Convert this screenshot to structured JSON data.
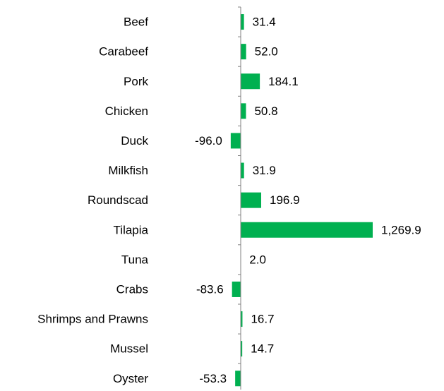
{
  "chart_data": {
    "type": "bar",
    "orientation": "horizontal",
    "categories": [
      "Beef",
      "Carabeef",
      "Pork",
      "Chicken",
      "Duck",
      "Milkfish",
      "Roundscad",
      "Tilapia",
      "Tuna",
      "Crabs",
      "Shrimps and Prawns",
      "Mussel",
      "Oyster"
    ],
    "values": [
      31.4,
      52.0,
      184.1,
      50.8,
      -96.0,
      31.9,
      196.9,
      1269.9,
      2.0,
      -83.6,
      16.7,
      14.7,
      -53.3
    ],
    "value_labels": [
      "31.4",
      "52.0",
      "184.1",
      "50.8",
      "-96.0",
      "31.9",
      "196.9",
      "1,269.9",
      "2.0",
      "-83.6",
      "16.7",
      "14.7",
      "-53.3"
    ],
    "title": "",
    "xlabel": "",
    "ylabel": "",
    "grid": false,
    "legend": "none",
    "colors": {
      "bar": "#00b050",
      "axis": "#808080",
      "text": "#000000"
    }
  }
}
